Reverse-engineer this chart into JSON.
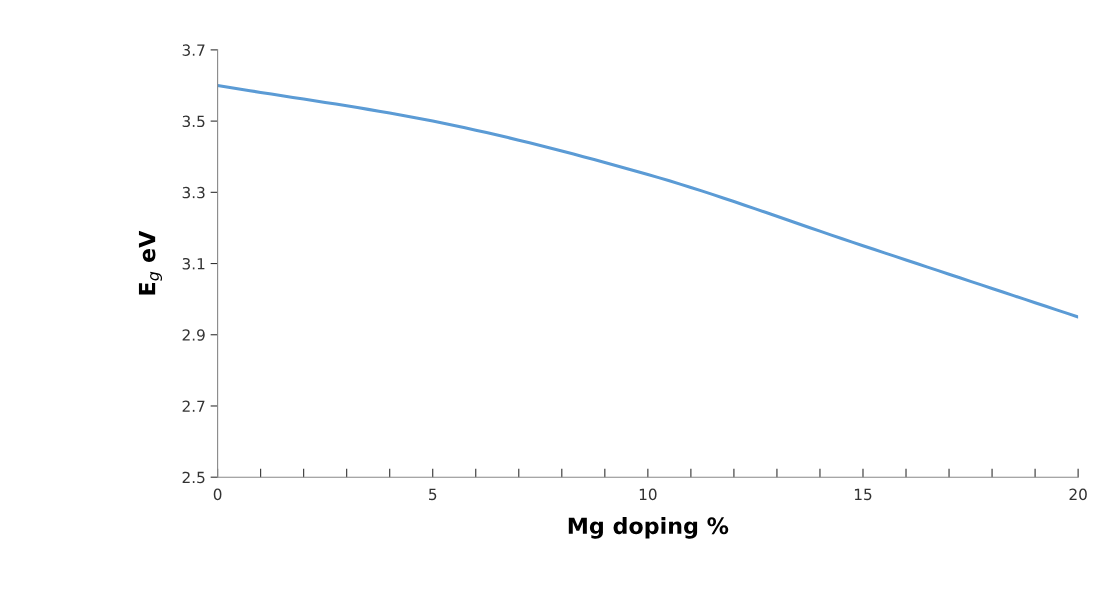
{
  "chart_data": {
    "type": "line",
    "xlabel": "Mg doping %",
    "ylabel": "E$_{g}$ eV",
    "x": [
      0,
      5,
      10,
      15,
      20
    ],
    "series": [
      {
        "color": "#5b9bd5",
        "values": [
          3.6,
          3.5,
          3.35,
          3.15,
          2.95
        ]
      }
    ],
    "xlim": [
      0,
      20
    ],
    "ylim": [
      2.5,
      3.7
    ],
    "xticks": [
      0,
      {
        "value": 1,
        "label": null
      },
      {
        "value": 2,
        "label": null
      },
      {
        "value": 3,
        "label": null
      },
      {
        "value": 4,
        "label": null
      },
      5,
      {
        "value": 6,
        "label": null
      },
      {
        "value": 7,
        "label": null
      },
      {
        "value": 8,
        "label": null
      },
      {
        "value": 9,
        "label": null
      },
      10,
      {
        "value": 11,
        "label": null
      },
      {
        "value": 12,
        "label": null
      },
      {
        "value": 13,
        "label": null
      },
      {
        "value": 14,
        "label": null
      },
      15,
      {
        "value": 16,
        "label": null
      },
      {
        "value": 17,
        "label": null
      },
      {
        "value": 18,
        "label": null
      },
      {
        "value": 19,
        "label": null
      },
      20
    ],
    "yticks": [
      2.5,
      2.7,
      2.9,
      3.1,
      3.3,
      3.5,
      3.7
    ],
    "grid": false,
    "marker": "none",
    "line_style": "solid"
  }
}
